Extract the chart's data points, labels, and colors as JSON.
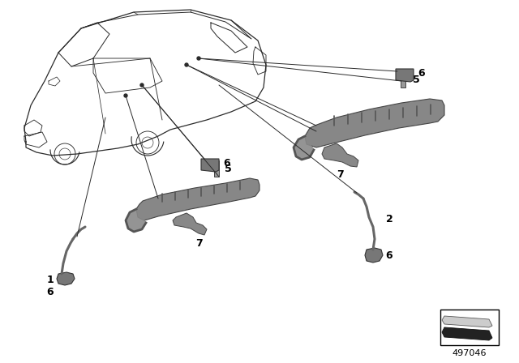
{
  "bg_color": "#ffffff",
  "diagram_number": "497046",
  "fig_width": 6.4,
  "fig_height": 4.48,
  "dpi": 100,
  "dark": "#2a2a2a",
  "gray": "#666666",
  "part_gray": "#888888",
  "part_light": "#aaaaaa",
  "label_fontsize": 9,
  "line_lw": 0.7
}
